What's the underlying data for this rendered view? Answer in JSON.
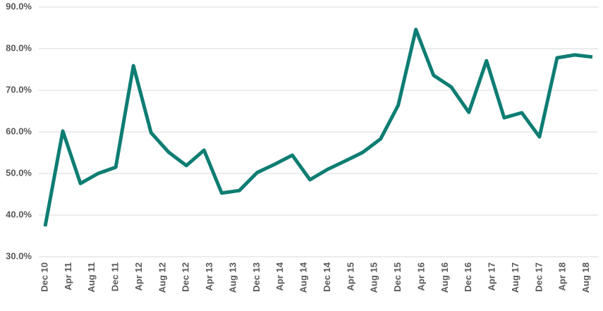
{
  "chart_data": {
    "type": "line",
    "x": [
      "2010-12",
      "2011-03",
      "2011-06",
      "2011-09",
      "2011-12",
      "2012-03",
      "2012-06",
      "2012-09",
      "2012-12",
      "2013-03",
      "2013-06",
      "2013-09",
      "2013-12",
      "2014-03",
      "2014-06",
      "2014-09",
      "2014-12",
      "2015-03",
      "2015-06",
      "2015-09",
      "2015-12",
      "2016-03",
      "2016-06",
      "2016-09",
      "2016-12",
      "2017-03",
      "2017-06",
      "2017-09",
      "2017-12",
      "2018-03",
      "2018-06",
      "2018-09"
    ],
    "series": [
      {
        "color": "#0e7d73",
        "values": [
          37.3,
          60.2,
          47.6,
          50.0,
          51.5,
          75.9,
          59.8,
          55.1,
          51.9,
          55.6,
          45.3,
          45.9,
          50.2,
          52.2,
          54.4,
          48.5,
          51.0,
          53.0,
          55.1,
          58.3,
          66.4,
          84.6,
          73.6,
          70.8,
          64.7,
          77.1,
          63.4,
          64.6,
          58.8,
          77.8,
          78.5,
          78.0
        ]
      }
    ],
    "xlim": [
      "2010-12",
      "2018-09"
    ],
    "xticks": [
      {
        "value": "2010-12",
        "label": "Dec 10"
      },
      {
        "value": "2011-04",
        "label": "Apr 11"
      },
      {
        "value": "2011-08",
        "label": "Aug 11"
      },
      {
        "value": "2011-12",
        "label": "Dec 11"
      },
      {
        "value": "2012-04",
        "label": "Apr 12"
      },
      {
        "value": "2012-08",
        "label": "Aug 12"
      },
      {
        "value": "2012-12",
        "label": "Dec 12"
      },
      {
        "value": "2013-04",
        "label": "Apr 13"
      },
      {
        "value": "2013-08",
        "label": "Aug 13"
      },
      {
        "value": "2013-12",
        "label": "Dec 13"
      },
      {
        "value": "2014-04",
        "label": "Apr 14"
      },
      {
        "value": "2014-08",
        "label": "Aug 14"
      },
      {
        "value": "2014-12",
        "label": "Dec 14"
      },
      {
        "value": "2015-04",
        "label": "Apr 15"
      },
      {
        "value": "2015-08",
        "label": "Aug 15"
      },
      {
        "value": "2015-12",
        "label": "Dec 15"
      },
      {
        "value": "2016-04",
        "label": "Apr 16"
      },
      {
        "value": "2016-08",
        "label": "Aug 16"
      },
      {
        "value": "2016-12",
        "label": "Dec 16"
      },
      {
        "value": "2017-04",
        "label": "Apr 17"
      },
      {
        "value": "2017-08",
        "label": "Aug 17"
      },
      {
        "value": "2017-12",
        "label": "Dec 17"
      },
      {
        "value": "2018-04",
        "label": "Apr 18"
      },
      {
        "value": "2018-08",
        "label": "Aug 18"
      }
    ],
    "ylim": [
      30,
      90
    ],
    "yticks": [
      {
        "value": 30,
        "label": "30.0%"
      },
      {
        "value": 40,
        "label": "40.0%"
      },
      {
        "value": 50,
        "label": "50.0%"
      },
      {
        "value": 60,
        "label": "60.0%"
      },
      {
        "value": 70,
        "label": "70.0%"
      },
      {
        "value": 80,
        "label": "80.0%"
      },
      {
        "value": 90,
        "label": "90.0%"
      }
    ],
    "grid": true
  }
}
